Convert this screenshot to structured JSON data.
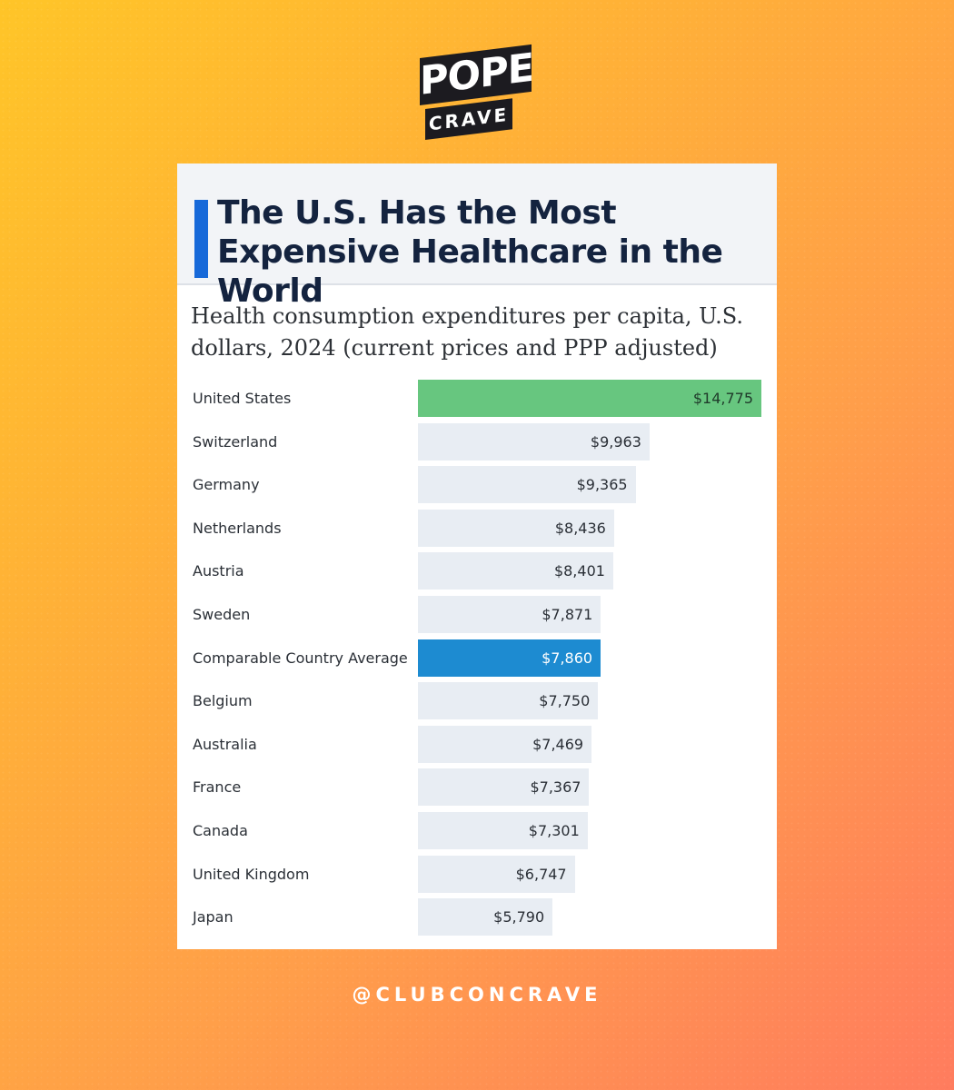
{
  "logo": {
    "line1": "POPE",
    "line2": "CRAVE"
  },
  "footer": {
    "handle": "@CLUBCONCRAVE"
  },
  "colors": {
    "accent": "#1769d9",
    "us_bar": "#67c67f",
    "average_bar": "#1d8bd1",
    "default_bar": "#e8edf3"
  },
  "chart_data": {
    "type": "bar",
    "orientation": "horizontal",
    "title": "The U.S. Has the Most Expensive Healthcare in the World",
    "subtitle": "Health consumption expenditures per capita, U.S. dollars, 2024 (current prices and PPP adjusted)",
    "xlim": [
      0,
      14775
    ],
    "highlight": "United States",
    "average": "Comparable Country Average",
    "categories": [
      "United States",
      "Switzerland",
      "Germany",
      "Netherlands",
      "Austria",
      "Sweden",
      "Comparable Country Average",
      "Belgium",
      "Australia",
      "France",
      "Canada",
      "United Kingdom",
      "Japan"
    ],
    "values": [
      14775,
      9963,
      9365,
      8436,
      8401,
      7871,
      7860,
      7750,
      7469,
      7367,
      7301,
      6747,
      5790
    ],
    "labels": [
      "$14,775",
      "$9,963",
      "$9,365",
      "$8,436",
      "$8,401",
      "$7,871",
      "$7,860",
      "$7,750",
      "$7,469",
      "$7,367",
      "$7,301",
      "$6,747",
      "$5,790"
    ]
  }
}
